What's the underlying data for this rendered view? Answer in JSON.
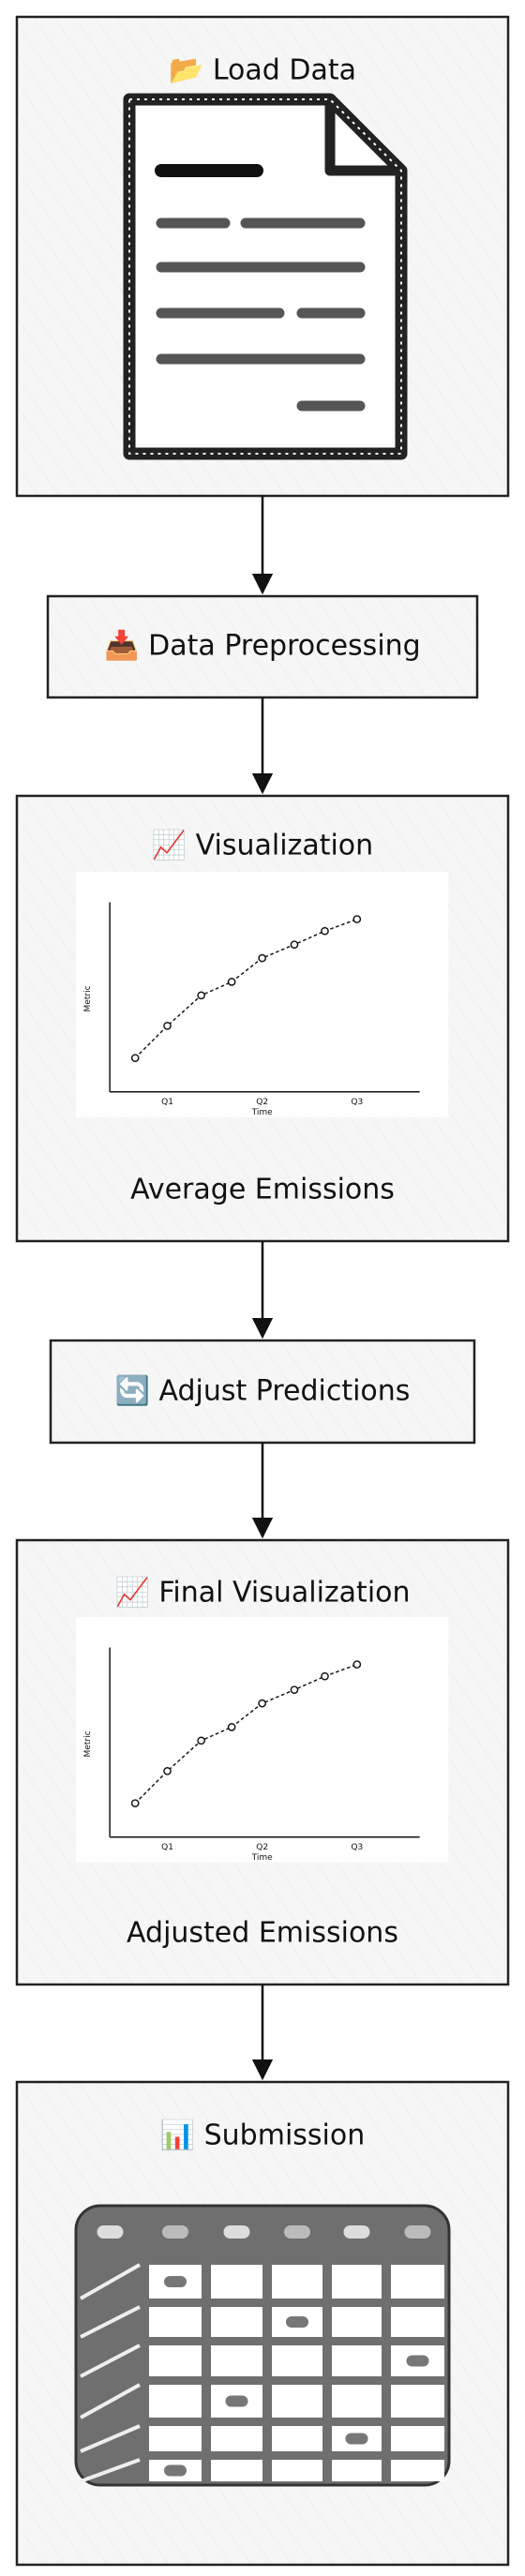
{
  "nodes": [
    {
      "label": "📂 Load Data"
    },
    {
      "label": "📥 Data Preprocessing"
    },
    {
      "label": "📈 Visualization",
      "chart": {
        "y_label": "Metric",
        "x_label": "Time",
        "ticks": [
          "Q1",
          "Q2",
          "Q3"
        ]
      },
      "caption": "Average Emissions"
    },
    {
      "label": "🔄 Adjust Predictions"
    },
    {
      "label": "📈 Final Visualization",
      "chart": {
        "y_label": "Metric",
        "x_label": "Time",
        "ticks": [
          "Q1",
          "Q2",
          "Q3"
        ]
      },
      "caption": "Adjusted Emissions"
    },
    {
      "label": "📊 Submission"
    }
  ]
}
